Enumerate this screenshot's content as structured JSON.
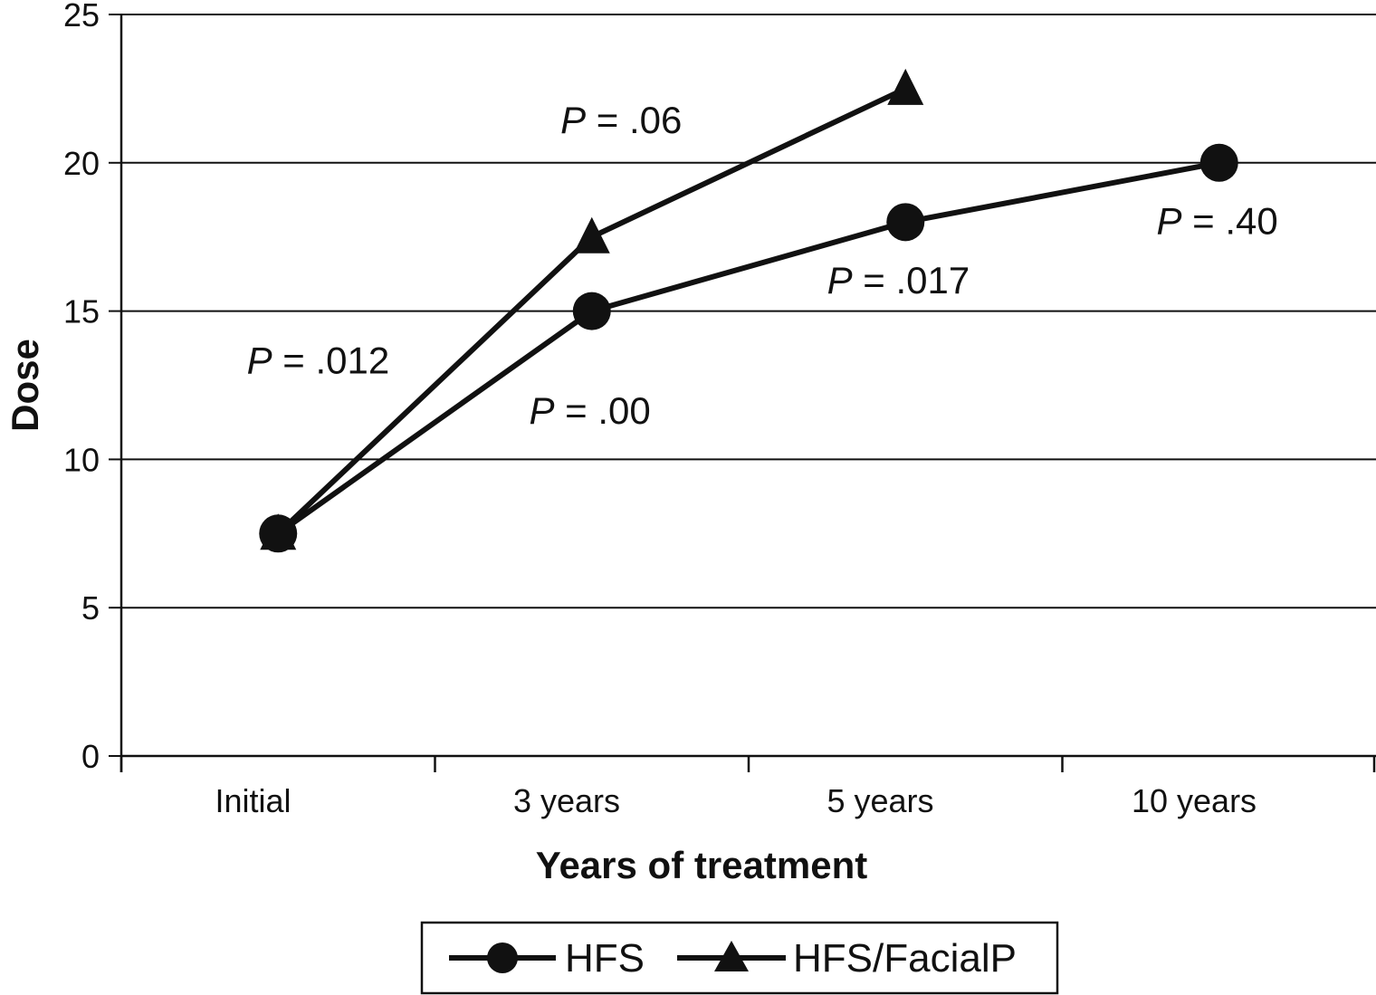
{
  "chart_data": {
    "type": "line",
    "categories": [
      "Initial",
      "3 years",
      "5 years",
      "10 years"
    ],
    "xlabel": "Years of treatment",
    "ylabel": "Dose",
    "ylim": [
      0,
      25
    ],
    "yticks": [
      0,
      5,
      10,
      15,
      20,
      25
    ],
    "grid": "horizontal",
    "legend_position": "bottom",
    "series": [
      {
        "name": "HFS",
        "marker": "circle",
        "values": [
          7.5,
          15,
          18,
          20
        ],
        "color": "#111111"
      },
      {
        "name": "HFS/FacialP",
        "marker": "triangle",
        "values": [
          7.5,
          17.5,
          22.5,
          null
        ],
        "color": "#111111"
      }
    ],
    "annotations": [
      {
        "prefix": "P",
        "text": " = .012",
        "x": 0.4,
        "y": 12.9
      },
      {
        "prefix": "P",
        "text": " = .00",
        "x": 1.3,
        "y": 11.2
      },
      {
        "prefix": "P",
        "text": " = .06",
        "x": 1.4,
        "y": 21.0
      },
      {
        "prefix": "P",
        "text": " = .017",
        "x": 2.25,
        "y": 15.6
      },
      {
        "prefix": "P",
        "text": " = .40",
        "x": 3.3,
        "y": 17.6
      }
    ]
  }
}
